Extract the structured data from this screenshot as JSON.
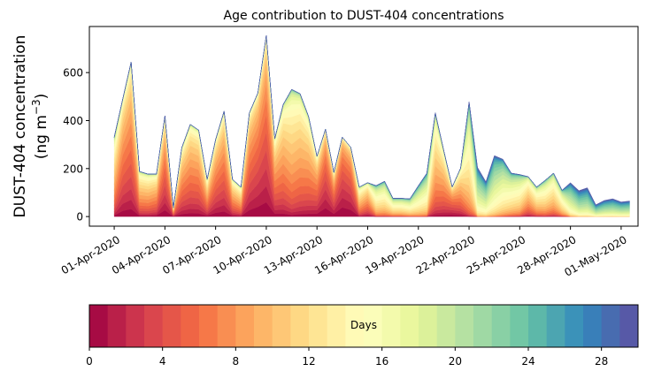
{
  "chart_data": {
    "type": "area",
    "stacked": true,
    "title": "Age contribution to DUST-404 concentrations",
    "ylabel_line1": "DUST-404 concentration",
    "ylabel_line2_prefix": "(ng m",
    "ylabel_line2_sup": "−3",
    "ylabel_line2_suffix": ")",
    "xlabel": "",
    "ylim": [
      -40,
      792
    ],
    "xlim_days_from_start": [
      -1.47,
      31
    ],
    "y_ticks": [
      0,
      200,
      400,
      600
    ],
    "y_tick_labels": [
      "0",
      "200",
      "400",
      "600"
    ],
    "x_tick_labels": [
      "01-Apr-2020",
      "04-Apr-2020",
      "07-Apr-2020",
      "10-Apr-2020",
      "13-Apr-2020",
      "16-Apr-2020",
      "19-Apr-2020",
      "22-Apr-2020",
      "25-Apr-2020",
      "28-Apr-2020",
      "01-May-2020"
    ],
    "x_tick_days": [
      0,
      3,
      6,
      9,
      12,
      15,
      18,
      21,
      24,
      27,
      30
    ],
    "time_step_days": 0.5,
    "total_concentration": [
      331,
      488,
      644,
      188,
      177,
      177,
      420,
      37,
      287,
      384,
      360,
      155,
      320,
      439,
      155,
      123,
      432,
      515,
      755,
      325,
      467,
      530,
      512,
      417,
      251,
      364,
      184,
      331,
      288,
      123,
      141,
      129,
      147,
      76,
      76,
      74,
      129,
      181,
      432,
      276,
      123,
      202,
      478,
      205,
      145,
      254,
      239,
      181,
      175,
      166,
      123,
      151,
      181,
      110,
      141,
      108,
      120,
      49,
      67,
      74,
      61,
      65
    ],
    "mean_age_days": [
      10,
      6,
      6,
      9,
      9,
      8,
      5,
      8,
      7,
      7,
      7,
      8,
      6,
      6,
      8,
      9,
      5,
      4,
      4,
      7,
      8,
      10,
      9,
      8,
      6,
      3,
      5,
      2,
      3,
      10,
      8,
      14,
      14,
      14,
      14,
      15,
      16,
      16,
      10,
      8,
      5,
      8,
      14,
      20,
      20,
      19,
      17,
      15,
      14,
      10,
      12,
      13,
      12,
      14,
      20,
      22,
      22,
      22,
      22,
      22,
      22,
      22
    ],
    "age_bins": 30,
    "colorbar": {
      "label": "Days",
      "ticks": [
        0,
        4,
        8,
        12,
        16,
        20,
        24,
        28
      ],
      "tick_labels": [
        "0",
        "4",
        "8",
        "12",
        "16",
        "20",
        "24",
        "28"
      ],
      "range": [
        0,
        30
      ],
      "colormap_anchors": [
        "#9e0142",
        "#d53e4f",
        "#f46d43",
        "#fdae61",
        "#fee08b",
        "#ffffbf",
        "#e6f598",
        "#abdda4",
        "#66c2a5",
        "#3288bd",
        "#5e4fa2"
      ]
    }
  }
}
